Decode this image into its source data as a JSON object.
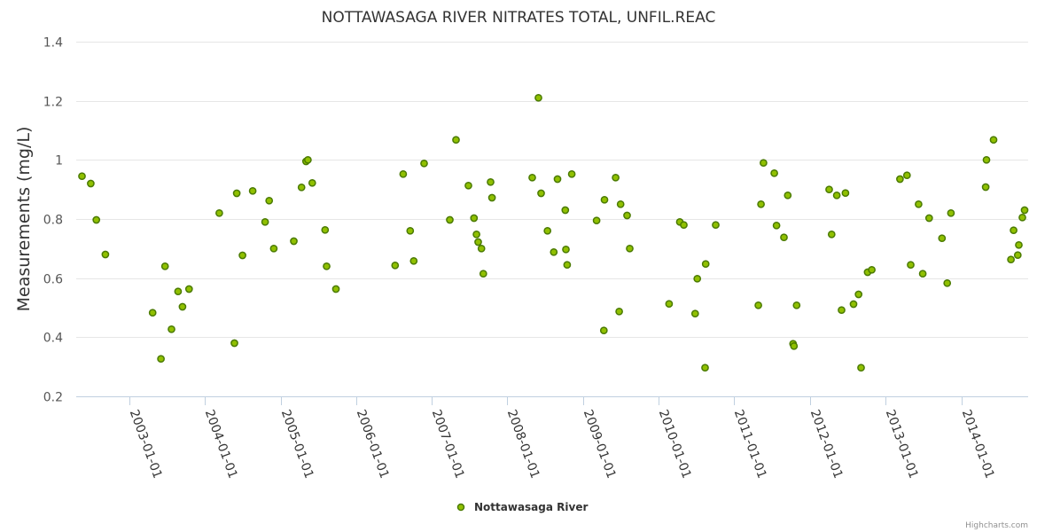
{
  "chart_data": {
    "type": "scatter",
    "title": "NOTTAWASAGA RIVER NITRATES TOTAL, UNFIL.REAC",
    "ylabel": "Measurements (mg/L)",
    "xlabel": "",
    "ylim": [
      0.2,
      1.4
    ],
    "yticks": [
      "0.2",
      "0.4",
      "0.6",
      "0.8",
      "1",
      "1.2",
      "1.4"
    ],
    "xlim": [
      "2002-04-20",
      "2014-11-20"
    ],
    "xticks": [
      "2003-01-01",
      "2004-01-01",
      "2005-01-01",
      "2006-01-01",
      "2007-01-01",
      "2008-01-01",
      "2009-01-01",
      "2010-01-01",
      "2011-01-01",
      "2012-01-01",
      "2013-01-01",
      "2014-01-01"
    ],
    "grid": "horizontal",
    "legend": "bottom-center",
    "series": [
      {
        "name": "Nottawasaga River",
        "color": "#90c000",
        "points": [
          [
            "2002-05-18",
            0.945
          ],
          [
            "2002-06-29",
            0.92
          ],
          [
            "2002-07-26",
            0.797
          ],
          [
            "2002-09-08",
            0.68
          ],
          [
            "2003-04-24",
            0.483
          ],
          [
            "2003-06-03",
            0.327
          ],
          [
            "2003-06-23",
            0.64
          ],
          [
            "2003-07-24",
            0.427
          ],
          [
            "2003-08-25",
            0.555
          ],
          [
            "2003-09-15",
            0.503
          ],
          [
            "2003-10-17",
            0.563
          ],
          [
            "2004-03-11",
            0.82
          ],
          [
            "2004-05-23",
            0.38
          ],
          [
            "2004-06-03",
            0.887
          ],
          [
            "2004-07-01",
            0.677
          ],
          [
            "2004-08-19",
            0.895
          ],
          [
            "2004-10-18",
            0.79
          ],
          [
            "2004-11-07",
            0.862
          ],
          [
            "2004-11-29",
            0.7
          ],
          [
            "2005-03-06",
            0.725
          ],
          [
            "2005-04-12",
            0.907
          ],
          [
            "2005-05-04",
            0.995
          ],
          [
            "2005-05-13",
            1.0
          ],
          [
            "2005-06-03",
            0.922
          ],
          [
            "2005-08-04",
            0.763
          ],
          [
            "2005-08-11",
            0.64
          ],
          [
            "2005-09-25",
            0.563
          ],
          [
            "2006-07-08",
            0.643
          ],
          [
            "2006-08-16",
            0.952
          ],
          [
            "2006-09-19",
            0.76
          ],
          [
            "2006-10-06",
            0.658
          ],
          [
            "2006-11-25",
            0.988
          ],
          [
            "2007-03-29",
            0.797
          ],
          [
            "2007-04-28",
            1.068
          ],
          [
            "2007-06-27",
            0.913
          ],
          [
            "2007-07-24",
            0.803
          ],
          [
            "2007-08-05",
            0.748
          ],
          [
            "2007-08-13",
            0.722
          ],
          [
            "2007-08-29",
            0.7
          ],
          [
            "2007-09-07",
            0.615
          ],
          [
            "2007-10-12",
            0.925
          ],
          [
            "2007-10-19",
            0.872
          ],
          [
            "2008-04-30",
            0.94
          ],
          [
            "2008-05-30",
            1.21
          ],
          [
            "2008-06-12",
            0.887
          ],
          [
            "2008-07-13",
            0.76
          ],
          [
            "2008-08-12",
            0.688
          ],
          [
            "2008-08-30",
            0.935
          ],
          [
            "2008-10-07",
            0.83
          ],
          [
            "2008-10-10",
            0.697
          ],
          [
            "2008-10-16",
            0.645
          ],
          [
            "2008-11-07",
            0.952
          ],
          [
            "2009-03-07",
            0.795
          ],
          [
            "2009-04-11",
            0.423
          ],
          [
            "2009-04-14",
            0.865
          ],
          [
            "2009-06-07",
            0.94
          ],
          [
            "2009-06-24",
            0.487
          ],
          [
            "2009-07-01",
            0.85
          ],
          [
            "2009-08-01",
            0.812
          ],
          [
            "2009-08-14",
            0.7
          ],
          [
            "2010-02-20",
            0.513
          ],
          [
            "2010-04-13",
            0.79
          ],
          [
            "2010-05-02",
            0.78
          ],
          [
            "2010-06-26",
            0.48
          ],
          [
            "2010-07-06",
            0.598
          ],
          [
            "2010-08-13",
            0.297
          ],
          [
            "2010-08-16",
            0.648
          ],
          [
            "2010-10-03",
            0.78
          ],
          [
            "2011-04-27",
            0.508
          ],
          [
            "2011-05-10",
            0.85
          ],
          [
            "2011-05-22",
            0.99
          ],
          [
            "2011-07-13",
            0.955
          ],
          [
            "2011-07-24",
            0.778
          ],
          [
            "2011-08-29",
            0.738
          ],
          [
            "2011-09-16",
            0.88
          ],
          [
            "2011-10-12",
            0.378
          ],
          [
            "2011-10-16",
            0.37
          ],
          [
            "2011-10-29",
            0.508
          ],
          [
            "2012-04-03",
            0.9
          ],
          [
            "2012-04-15",
            0.748
          ],
          [
            "2012-05-10",
            0.88
          ],
          [
            "2012-06-02",
            0.492
          ],
          [
            "2012-06-21",
            0.888
          ],
          [
            "2012-07-30",
            0.512
          ],
          [
            "2012-08-23",
            0.545
          ],
          [
            "2012-09-04",
            0.297
          ],
          [
            "2012-10-06",
            0.62
          ],
          [
            "2012-10-26",
            0.628
          ],
          [
            "2013-03-11",
            0.935
          ],
          [
            "2013-04-14",
            0.948
          ],
          [
            "2013-05-02",
            0.645
          ],
          [
            "2013-06-09",
            0.85
          ],
          [
            "2013-06-29",
            0.615
          ],
          [
            "2013-07-30",
            0.803
          ],
          [
            "2013-09-30",
            0.735
          ],
          [
            "2013-10-25",
            0.583
          ],
          [
            "2013-11-12",
            0.82
          ],
          [
            "2014-04-29",
            0.908
          ],
          [
            "2014-05-03",
            1.0
          ],
          [
            "2014-06-06",
            1.068
          ],
          [
            "2014-08-29",
            0.663
          ],
          [
            "2014-09-11",
            0.762
          ],
          [
            "2014-10-01",
            0.678
          ],
          [
            "2014-10-06",
            0.712
          ],
          [
            "2014-10-23",
            0.805
          ],
          [
            "2014-11-03",
            0.83
          ]
        ]
      }
    ]
  },
  "credits": "Highcharts.com"
}
